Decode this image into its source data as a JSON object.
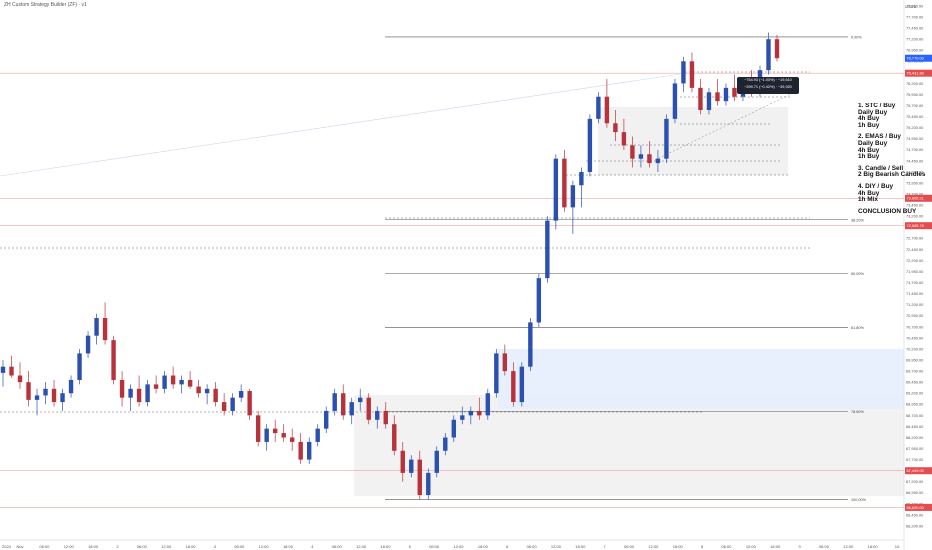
{
  "header": {
    "title": "ZH Custom Strategy Builder (ZF) · v1",
    "currency": "USDS"
  },
  "notes": {
    "blocks": [
      [
        "1. STC / Buy",
        "Daily Buy",
        "4h Buy",
        "1h Buy"
      ],
      [
        "2. EMAS / Buy",
        "Daily Buy",
        "4h Buy",
        "1h Buy"
      ],
      [
        "3. Candle / Sell",
        "2 Big Bearish Candles"
      ],
      [
        "4. DIY / Buy",
        "4h Buy",
        "1h Mix"
      ]
    ],
    "conclusion": "CONCLUSION BUY"
  },
  "tooltip": {
    "line1": "−764.93 (−1.00%) · −19,610",
    "line2": "−299.71 (−0.42%) · −39,920"
  },
  "colors": {
    "up": "#2b50b0",
    "down": "#b8323c",
    "fib": "#555555",
    "red_line": "#f2a2a2",
    "zone_gray": "#ededed",
    "zone_blue": "#e4eefc",
    "price_badge_blue": "#2962ff",
    "price_badge_red": "#e24d4f"
  },
  "chart_data": {
    "type": "candlestick",
    "y_axis": {
      "range": [
        66200,
        77950
      ],
      "ticks": [
        "77,950.00",
        "77,700.00",
        "77,450.00",
        "77,200.00",
        "76,950.00",
        "76,700.00",
        "76,450.00",
        "76,200.00",
        "75,950.00",
        "75,700.00",
        "75,450.00",
        "75,200.00",
        "74,950.00",
        "74,700.00",
        "74,450.00",
        "74,200.00",
        "73,950.00",
        "73,700.00",
        "73,450.00",
        "73,200.00",
        "72,950.00",
        "72,700.00",
        "72,450.00",
        "72,200.00",
        "71,950.00",
        "71,700.00",
        "71,450.00",
        "71,200.00",
        "70,950.00",
        "70,700.00",
        "70,450.00",
        "70,200.00",
        "69,950.00",
        "69,700.00",
        "69,450.00",
        "69,200.00",
        "68,950.00",
        "68,700.00",
        "68,450.00",
        "68,200.00",
        "67,950.00",
        "67,700.00",
        "67,450.00",
        "67,200.00",
        "66,950.00",
        "66,700.00",
        "66,450.00",
        "66,200.00"
      ],
      "highlighted": [
        {
          "value": "76,770.00",
          "style": "blue"
        },
        {
          "value": "76,431.80",
          "style": "red"
        },
        {
          "value": "73,605.21",
          "style": "red"
        },
        {
          "value": "72,985.78",
          "style": "red"
        },
        {
          "value": "67,449.00",
          "style": "red"
        },
        {
          "value": "66,620.00",
          "style": "red"
        }
      ]
    },
    "x_axis": {
      "ticks": [
        "Nov",
        "06:00",
        "12:00",
        "18:00",
        "2",
        "06:00",
        "12:00",
        "18:00",
        "3",
        "06:00",
        "12:00",
        "18:00",
        "4",
        "06:00",
        "12:00",
        "18:00",
        "5",
        "06:00",
        "12:00",
        "18:00",
        "6",
        "06:00",
        "12:00",
        "18:00",
        "7",
        "06:00",
        "12:00",
        "18:00",
        "8",
        "06:00",
        "12:00",
        "18:00",
        "9",
        "06:00",
        "12:00",
        "18:00",
        "10"
      ],
      "first_label": "2024"
    },
    "fib_levels": [
      {
        "label": "0.00%",
        "price": 77250
      },
      {
        "label": "38.20%",
        "price": 73120
      },
      {
        "label": "50.00%",
        "price": 71900
      },
      {
        "label": "61.80%",
        "price": 70680
      },
      {
        "label": "78.60%",
        "price": 68790
      },
      {
        "label": "100.00%",
        "price": 66800
      }
    ],
    "series": [
      {
        "open": 69660,
        "high": 69950,
        "low": 69350,
        "close": 69800
      },
      {
        "open": 69800,
        "high": 70050,
        "low": 69550,
        "close": 69600
      },
      {
        "open": 69600,
        "high": 69900,
        "low": 69300,
        "close": 69450
      },
      {
        "open": 69450,
        "high": 69700,
        "low": 68900,
        "close": 69050
      },
      {
        "open": 69050,
        "high": 69300,
        "low": 68700,
        "close": 69150
      },
      {
        "open": 69150,
        "high": 69450,
        "low": 68950,
        "close": 69300
      },
      {
        "open": 69300,
        "high": 69500,
        "low": 68900,
        "close": 69000
      },
      {
        "open": 69000,
        "high": 69300,
        "low": 68800,
        "close": 69200
      },
      {
        "open": 69200,
        "high": 69600,
        "low": 69100,
        "close": 69500
      },
      {
        "open": 69500,
        "high": 70200,
        "low": 69400,
        "close": 70100
      },
      {
        "open": 70100,
        "high": 70600,
        "low": 70000,
        "close": 70500
      },
      {
        "open": 70500,
        "high": 71000,
        "low": 70300,
        "close": 70900
      },
      {
        "open": 70900,
        "high": 71250,
        "low": 70300,
        "close": 70400
      },
      {
        "open": 70400,
        "high": 70500,
        "low": 69400,
        "close": 69500
      },
      {
        "open": 69500,
        "high": 69700,
        "low": 68900,
        "close": 69100
      },
      {
        "open": 69100,
        "high": 69400,
        "low": 68800,
        "close": 69300
      },
      {
        "open": 69300,
        "high": 69600,
        "low": 68900,
        "close": 69000
      },
      {
        "open": 69000,
        "high": 69500,
        "low": 68900,
        "close": 69400
      },
      {
        "open": 69400,
        "high": 69600,
        "low": 69200,
        "close": 69300
      },
      {
        "open": 69300,
        "high": 69700,
        "low": 69200,
        "close": 69600
      },
      {
        "open": 69600,
        "high": 69800,
        "low": 69300,
        "close": 69400
      },
      {
        "open": 69400,
        "high": 69600,
        "low": 69200,
        "close": 69500
      },
      {
        "open": 69500,
        "high": 69700,
        "low": 69300,
        "close": 69350
      },
      {
        "open": 69350,
        "high": 69500,
        "low": 69100,
        "close": 69200
      },
      {
        "open": 69200,
        "high": 69400,
        "low": 68950,
        "close": 69300
      },
      {
        "open": 69300,
        "high": 69450,
        "low": 68900,
        "close": 69000
      },
      {
        "open": 69000,
        "high": 69200,
        "low": 68700,
        "close": 68800
      },
      {
        "open": 68800,
        "high": 69200,
        "low": 68700,
        "close": 69100
      },
      {
        "open": 69100,
        "high": 69400,
        "low": 69000,
        "close": 69250
      },
      {
        "open": 69250,
        "high": 69300,
        "low": 68600,
        "close": 68700
      },
      {
        "open": 68700,
        "high": 68800,
        "low": 68000,
        "close": 68100
      },
      {
        "open": 68100,
        "high": 68500,
        "low": 67900,
        "close": 68400
      },
      {
        "open": 68400,
        "high": 68600,
        "low": 68100,
        "close": 68300
      },
      {
        "open": 68300,
        "high": 68500,
        "low": 68100,
        "close": 68200
      },
      {
        "open": 68200,
        "high": 68400,
        "low": 67900,
        "close": 68100
      },
      {
        "open": 68100,
        "high": 68300,
        "low": 67600,
        "close": 67700
      },
      {
        "open": 67700,
        "high": 68200,
        "low": 67600,
        "close": 68100
      },
      {
        "open": 68100,
        "high": 68500,
        "low": 68000,
        "close": 68400
      },
      {
        "open": 68400,
        "high": 68900,
        "low": 68300,
        "close": 68800
      },
      {
        "open": 68800,
        "high": 69300,
        "low": 68700,
        "close": 69200
      },
      {
        "open": 69200,
        "high": 69400,
        "low": 68600,
        "close": 68700
      },
      {
        "open": 68700,
        "high": 69100,
        "low": 68500,
        "close": 69000
      },
      {
        "open": 69000,
        "high": 69300,
        "low": 68800,
        "close": 69100
      },
      {
        "open": 69100,
        "high": 69200,
        "low": 68500,
        "close": 68600
      },
      {
        "open": 68600,
        "high": 68900,
        "low": 68400,
        "close": 68800
      },
      {
        "open": 68800,
        "high": 69000,
        "low": 68400,
        "close": 68500
      },
      {
        "open": 68500,
        "high": 68700,
        "low": 67800,
        "close": 67900
      },
      {
        "open": 67900,
        "high": 68100,
        "low": 67200,
        "close": 67400
      },
      {
        "open": 67400,
        "high": 67800,
        "low": 67300,
        "close": 67700
      },
      {
        "open": 67700,
        "high": 67900,
        "low": 66800,
        "close": 66900
      },
      {
        "open": 66900,
        "high": 67500,
        "low": 66800,
        "close": 67400
      },
      {
        "open": 67400,
        "high": 68000,
        "low": 67300,
        "close": 67900
      },
      {
        "open": 67900,
        "high": 68300,
        "low": 67800,
        "close": 68200
      },
      {
        "open": 68200,
        "high": 68700,
        "low": 68100,
        "close": 68600
      },
      {
        "open": 68600,
        "high": 68900,
        "low": 68500,
        "close": 68700
      },
      {
        "open": 68700,
        "high": 68900,
        "low": 68500,
        "close": 68800
      },
      {
        "open": 68800,
        "high": 69100,
        "low": 68600,
        "close": 68700
      },
      {
        "open": 68700,
        "high": 69300,
        "low": 68600,
        "close": 69200
      },
      {
        "open": 69200,
        "high": 70200,
        "low": 69100,
        "close": 70100
      },
      {
        "open": 70100,
        "high": 70300,
        "low": 69600,
        "close": 69700
      },
      {
        "open": 69700,
        "high": 69900,
        "low": 68900,
        "close": 69000
      },
      {
        "open": 69000,
        "high": 69900,
        "low": 68900,
        "close": 69800
      },
      {
        "open": 69800,
        "high": 70900,
        "low": 69700,
        "close": 70800
      },
      {
        "open": 70800,
        "high": 71900,
        "low": 70700,
        "close": 71800
      },
      {
        "open": 71800,
        "high": 73200,
        "low": 71700,
        "close": 73100
      },
      {
        "open": 73100,
        "high": 74600,
        "low": 72900,
        "close": 74500
      },
      {
        "open": 74500,
        "high": 74700,
        "low": 73300,
        "close": 73400
      },
      {
        "open": 73400,
        "high": 74000,
        "low": 72800,
        "close": 73900
      },
      {
        "open": 73900,
        "high": 74300,
        "low": 73400,
        "close": 74200
      },
      {
        "open": 74200,
        "high": 75500,
        "low": 74100,
        "close": 75400
      },
      {
        "open": 75400,
        "high": 76000,
        "low": 75300,
        "close": 75900
      },
      {
        "open": 75900,
        "high": 76300,
        "low": 75200,
        "close": 75300
      },
      {
        "open": 75300,
        "high": 75600,
        "low": 74900,
        "close": 75100
      },
      {
        "open": 75100,
        "high": 75400,
        "low": 74700,
        "close": 74800
      },
      {
        "open": 74800,
        "high": 75000,
        "low": 74300,
        "close": 74500
      },
      {
        "open": 74500,
        "high": 74800,
        "low": 74300,
        "close": 74600
      },
      {
        "open": 74600,
        "high": 74900,
        "low": 74300,
        "close": 74400
      },
      {
        "open": 74400,
        "high": 74700,
        "low": 74200,
        "close": 74500
      },
      {
        "open": 74500,
        "high": 75500,
        "low": 74400,
        "close": 75400
      },
      {
        "open": 75400,
        "high": 76300,
        "low": 75300,
        "close": 76200
      },
      {
        "open": 76200,
        "high": 76800,
        "low": 76000,
        "close": 76700
      },
      {
        "open": 76700,
        "high": 76900,
        "low": 76000,
        "close": 76100
      },
      {
        "open": 76100,
        "high": 76300,
        "low": 75500,
        "close": 75600
      },
      {
        "open": 75600,
        "high": 76100,
        "low": 75500,
        "close": 76000
      },
      {
        "open": 76000,
        "high": 76300,
        "low": 75700,
        "close": 75800
      },
      {
        "open": 75800,
        "high": 76200,
        "low": 75700,
        "close": 76100
      },
      {
        "open": 76100,
        "high": 76400,
        "low": 75800,
        "close": 75900
      },
      {
        "open": 75900,
        "high": 76200,
        "low": 75800,
        "close": 76100
      },
      {
        "open": 76100,
        "high": 76500,
        "low": 75900,
        "close": 76000
      },
      {
        "open": 76000,
        "high": 76600,
        "low": 75900,
        "close": 76500
      },
      {
        "open": 76500,
        "high": 77350,
        "low": 76400,
        "close": 77200
      },
      {
        "open": 77200,
        "high": 77300,
        "low": 76700,
        "close": 76770
      }
    ]
  }
}
